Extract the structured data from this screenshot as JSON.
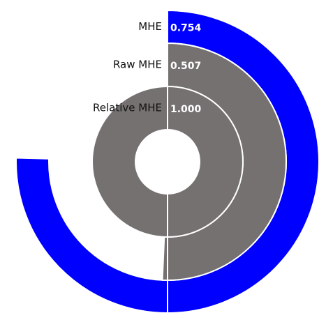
{
  "chart_data": {
    "type": "radial_bar",
    "categories": [
      "MHE",
      "Raw MHE",
      "Relative MHE"
    ],
    "values": [
      0.754,
      0.507,
      1.0
    ],
    "value_labels": [
      "0.754",
      "0.507",
      "1.000"
    ],
    "colors": [
      "#0000ff",
      "#767171",
      "#767171"
    ],
    "ylim": [
      0,
      1
    ]
  }
}
